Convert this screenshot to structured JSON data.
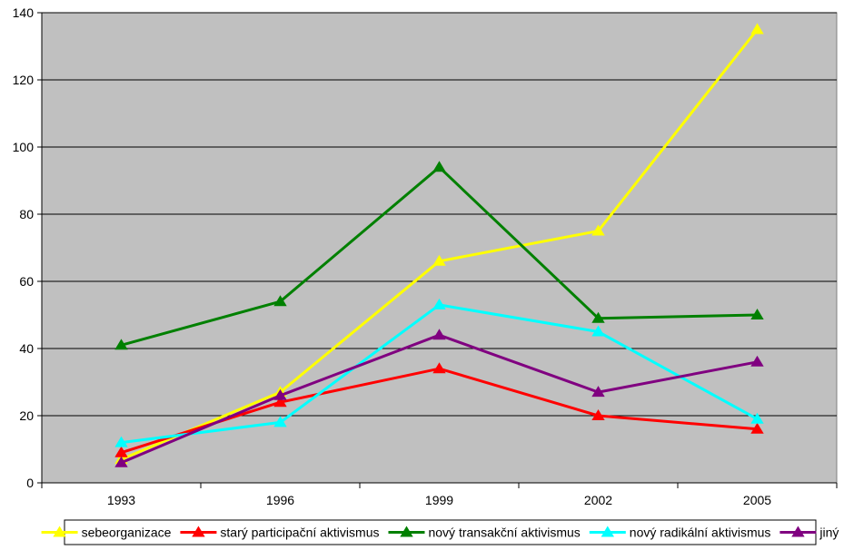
{
  "chart_data": {
    "type": "line",
    "title": "",
    "xlabel": "",
    "ylabel": "",
    "categories": [
      "1993",
      "1996",
      "1999",
      "2002",
      "2005"
    ],
    "ylim": [
      0,
      140
    ],
    "yticks": [
      0,
      20,
      40,
      60,
      80,
      100,
      120,
      140
    ],
    "grid": true,
    "legend_position": "bottom",
    "plot_background": "#c0c0c0",
    "series": [
      {
        "name": "sebeorganizace",
        "color": "#ffff00",
        "values": [
          7,
          27,
          66,
          75,
          135
        ]
      },
      {
        "name": "starý participační aktivismus",
        "color": "#ff0000",
        "values": [
          9,
          24,
          34,
          20,
          16
        ]
      },
      {
        "name": "nový transakční aktivismus",
        "color": "#008000",
        "values": [
          41,
          54,
          94,
          49,
          50
        ]
      },
      {
        "name": "nový radikální aktivismus",
        "color": "#00ffff",
        "values": [
          12,
          18,
          53,
          45,
          19
        ]
      },
      {
        "name": "jiný",
        "color": "#800080",
        "values": [
          6,
          26,
          44,
          27,
          36
        ]
      }
    ]
  }
}
